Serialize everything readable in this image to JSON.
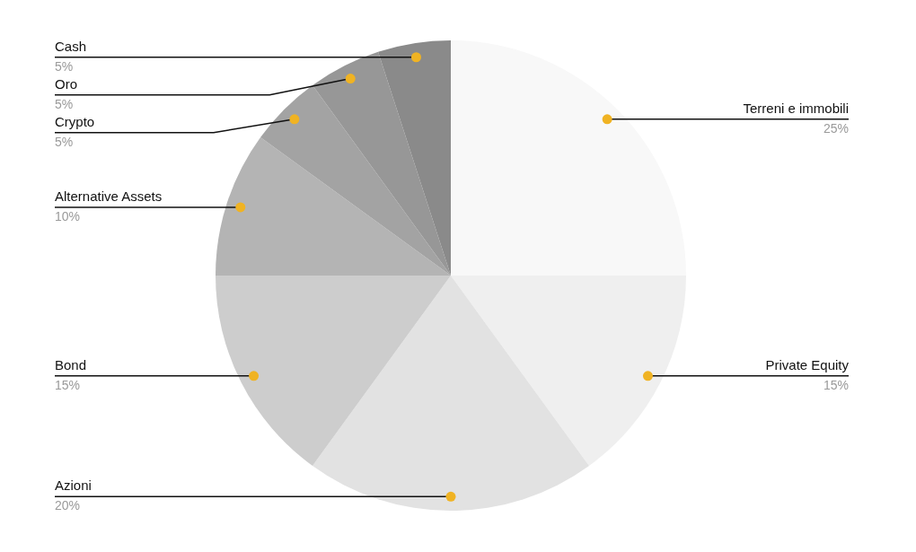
{
  "chart_data": {
    "type": "pie",
    "categories": [
      "Terreni e immobili",
      "Private Equity",
      "Azioni",
      "Bond",
      "Alternative Assets",
      "Crypto",
      "Oro",
      "Cash"
    ],
    "values": [
      25,
      15,
      20,
      15,
      10,
      5,
      5,
      5
    ],
    "value_labels": [
      "25%",
      "15%",
      "20%",
      "15%",
      "10%",
      "5%",
      "5%",
      "5%"
    ],
    "colors": [
      "#f8f8f8",
      "#efefef",
      "#e2e2e2",
      "#cdcdcd",
      "#b4b4b4",
      "#a3a3a3",
      "#979797",
      "#8a8a8a"
    ]
  }
}
